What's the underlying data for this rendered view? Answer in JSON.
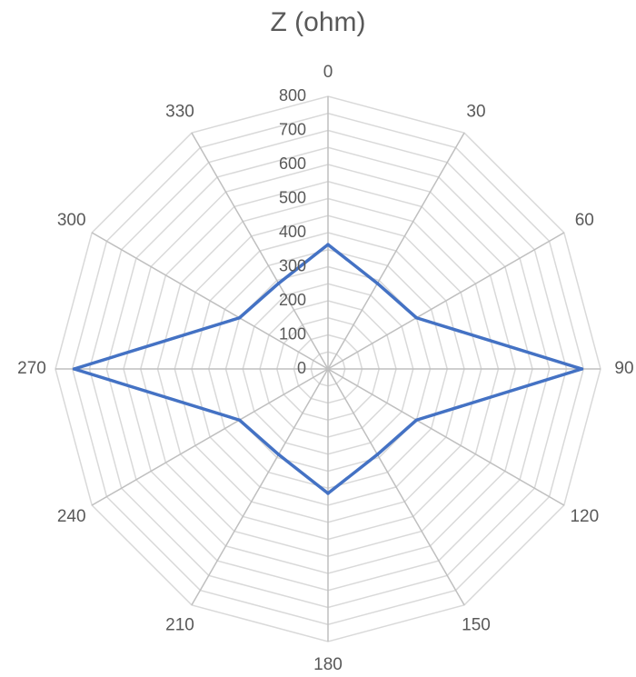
{
  "chart_data": {
    "type": "radar",
    "title": "Z (ohm)",
    "categories": [
      "0",
      "30",
      "60",
      "90",
      "120",
      "150",
      "180",
      "210",
      "240",
      "270",
      "300",
      "330"
    ],
    "series": [
      {
        "color": "#4472c4",
        "values": [
          365,
          290,
          300,
          745,
          300,
          290,
          365,
          290,
          300,
          745,
          300,
          290
        ]
      }
    ],
    "rlim": [
      0,
      800
    ],
    "r_ticks": [
      "0",
      "100",
      "200",
      "300",
      "400",
      "500",
      "600",
      "700",
      "800"
    ],
    "grid": true,
    "legend": "none"
  }
}
